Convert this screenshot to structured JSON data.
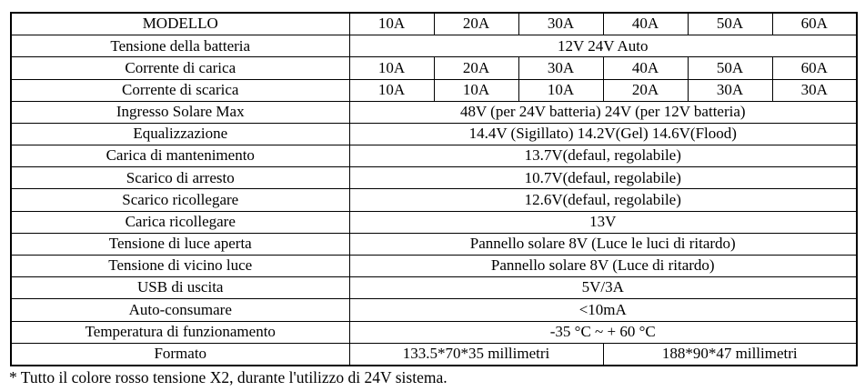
{
  "table": {
    "rows": [
      {
        "label": "MODELLO",
        "cells": [
          "10A",
          "20A",
          "30A",
          "40A",
          "50A",
          "60A"
        ]
      },
      {
        "label": "Tensione della batteria",
        "span": "12V 24V Auto"
      },
      {
        "label": "Corrente di carica",
        "cells": [
          "10A",
          "20A",
          "30A",
          "40A",
          "50A",
          "60A"
        ]
      },
      {
        "label": "Corrente di scarica",
        "cells": [
          "10A",
          "10A",
          "10A",
          "20A",
          "30A",
          "30A"
        ]
      },
      {
        "label": "Ingresso Solare Max",
        "span": "48V (per 24V batteria) 24V (per 12V batteria)"
      },
      {
        "label": "Equalizzazione",
        "span": "14.4V (Sigillato) 14.2V(Gel) 14.6V(Flood)"
      },
      {
        "label": "Carica di mantenimento",
        "span": "13.7V(defaul, regolabile)"
      },
      {
        "label": "Scarico di arresto",
        "span": "10.7V(defaul, regolabile)"
      },
      {
        "label": "Scarico ricollegare",
        "span": "12.6V(defaul, regolabile)"
      },
      {
        "label": "Carica ricollegare",
        "span": "13V"
      },
      {
        "label": "Tensione di luce aperta",
        "span": "Pannello solare 8V (Luce le luci di ritardo)"
      },
      {
        "label": "Tensione di vicino luce",
        "span": "Pannello solare 8V (Luce di ritardo)"
      },
      {
        "label": "USB di uscita",
        "span": "5V/3A"
      },
      {
        "label": "Auto-consumare",
        "span": "<10mA"
      },
      {
        "label": "Temperatura di funzionamento",
        "span": "-35 °C ~ + 60 °C"
      },
      {
        "label": "Formato",
        "halves": [
          "133.5*70*35 millimetri",
          "188*90*47 millimetri"
        ]
      }
    ]
  },
  "footnote": "* Tutto il colore rosso tensione X2, durante l'utilizzo di 24V sistema.",
  "colors": {
    "text": "#000000",
    "border": "#000000",
    "background": "#ffffff"
  }
}
